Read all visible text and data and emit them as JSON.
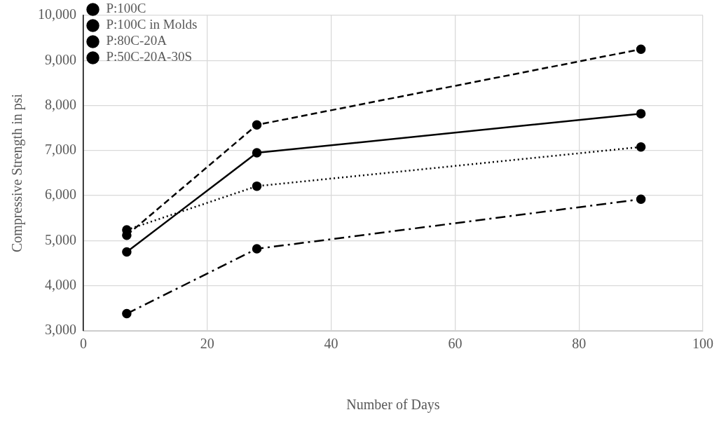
{
  "chart_data": {
    "type": "line",
    "xlabel": "Number of Days",
    "ylabel": "Compressive Strength in psi",
    "x": [
      7,
      28,
      90
    ],
    "series": [
      {
        "name": "P:100C",
        "color": "#000000",
        "values": [
          4750,
          6950,
          7820
        ],
        "line_style": "solid"
      },
      {
        "name": "P:100C in Molds",
        "color": "#000000",
        "values": [
          5240,
          6210,
          7080
        ],
        "line_style": "dotted"
      },
      {
        "name": "P:80C-20A",
        "color": "#000000",
        "values": [
          3380,
          4820,
          5920
        ],
        "line_style": "dashdot"
      },
      {
        "name": "P:50C-20A-30S",
        "color": "#000000",
        "values": [
          5120,
          7570,
          9250
        ],
        "line_style": "dashed"
      }
    ],
    "xlim": [
      0,
      100
    ],
    "xticks": [
      0,
      20,
      40,
      60,
      80,
      100
    ],
    "ylim": [
      3000,
      10000
    ],
    "yticks": [
      {
        "value": 3000,
        "label": "3,000"
      },
      {
        "value": 4000,
        "label": "4,000"
      },
      {
        "value": 5000,
        "label": "5,000"
      },
      {
        "value": 6000,
        "label": "6,000"
      },
      {
        "value": 7000,
        "label": "7,000"
      },
      {
        "value": 8000,
        "label": "8,000"
      },
      {
        "value": 9000,
        "label": "9,000"
      },
      {
        "value": 10000,
        "label": "10,000"
      }
    ],
    "grid": true,
    "legend": "top left",
    "marker": "circle"
  }
}
